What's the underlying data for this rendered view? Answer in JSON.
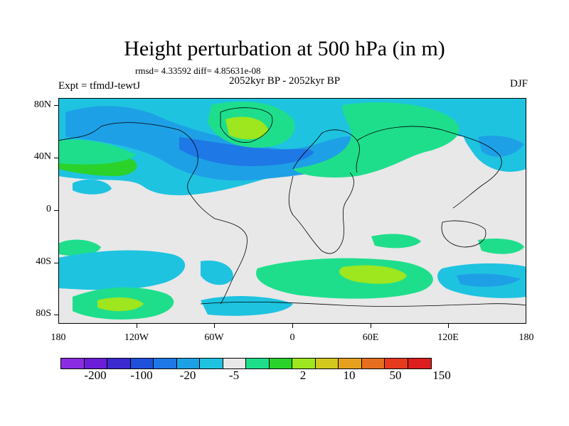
{
  "title": "Height perturbation at 500 hPa (in m)",
  "stats": "rmsd= 4.33592 diff= 4.85631e-08",
  "experiment": "Expt = tfmdJ-tewtJ",
  "period": "2052kyr BP - 2052kyr BP",
  "season": "DJF",
  "lat_labels": [
    "80N",
    "40N",
    "0",
    "40S",
    "80S"
  ],
  "lon_labels": [
    "180",
    "120W",
    "60W",
    "0",
    "60E",
    "120E",
    "180"
  ],
  "colorbar": {
    "colors": [
      "#8a2be2",
      "#6a1ed8",
      "#3a2ad0",
      "#1e50dc",
      "#1e78e6",
      "#1ea0e6",
      "#1ec3e0",
      "#e8e8e8",
      "#1ede8c",
      "#2ad22a",
      "#9ee61e",
      "#d2c81e",
      "#e6a01e",
      "#e66e1e",
      "#e63a1e",
      "#dc1e1e"
    ],
    "labels": [
      "-200",
      "-100",
      "-20",
      "-5",
      "2",
      "10",
      "50",
      "150"
    ]
  }
}
